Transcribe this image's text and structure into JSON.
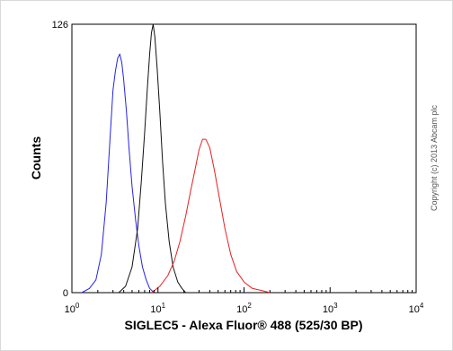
{
  "chart_data": {
    "type": "line",
    "title": "",
    "xlabel": "SIGLEC5 - Alexa Fluor® 488 (525/30 BP)",
    "ylabel": "Counts",
    "x_scale": "log",
    "xlim": [
      1,
      10000
    ],
    "ylim": [
      0,
      126
    ],
    "x_ticks": [
      {
        "value": 1,
        "base": "10",
        "exp": "0"
      },
      {
        "value": 10,
        "base": "10",
        "exp": "1"
      },
      {
        "value": 100,
        "base": "10",
        "exp": "2"
      },
      {
        "value": 1000,
        "base": "10",
        "exp": "3"
      },
      {
        "value": 10000,
        "base": "10",
        "exp": "4"
      }
    ],
    "y_ticks": [
      {
        "value": 0,
        "label": "0"
      },
      {
        "value": 126,
        "label": "126"
      }
    ],
    "grid": false,
    "legend": "none",
    "copyright": "Copyright (c) 2013 Abcam plc",
    "series": [
      {
        "color": "#2323e6",
        "x": [
          1.3,
          1.6,
          1.9,
          2.2,
          2.5,
          2.8,
          3.0,
          3.2,
          3.4,
          3.6,
          3.8,
          4.0,
          4.3,
          4.6,
          5.0,
          5.5,
          6.0,
          6.6,
          7.3,
          8.0,
          9.0
        ],
        "y": [
          0,
          2,
          6,
          18,
          42,
          75,
          95,
          104,
          110,
          112,
          108,
          100,
          85,
          68,
          50,
          34,
          22,
          12,
          6,
          2,
          0
        ]
      },
      {
        "color": "#111111",
        "x": [
          3.5,
          4.2,
          5.0,
          5.8,
          6.4,
          7.0,
          7.5,
          8.0,
          8.4,
          8.8,
          9.2,
          9.8,
          10.5,
          11.3,
          12.2,
          13.5,
          15.0,
          17.0,
          19.0,
          21.0
        ],
        "y": [
          0,
          3,
          12,
          30,
          52,
          75,
          95,
          112,
          122,
          126,
          120,
          105,
          85,
          62,
          42,
          24,
          12,
          5,
          2,
          0
        ]
      },
      {
        "color": "#e62020",
        "x": [
          8.5,
          10.5,
          13.0,
          15.5,
          18.0,
          21.0,
          24.0,
          27.0,
          30.0,
          33.0,
          36.0,
          40.0,
          45.0,
          52.0,
          60.0,
          70.0,
          82.0,
          100.0,
          125.0,
          160.0,
          200.0
        ],
        "y": [
          0,
          3,
          8,
          15,
          24,
          36,
          48,
          58,
          67,
          72,
          72,
          68,
          58,
          44,
          30,
          18,
          10,
          5,
          2,
          1,
          0
        ]
      }
    ]
  }
}
